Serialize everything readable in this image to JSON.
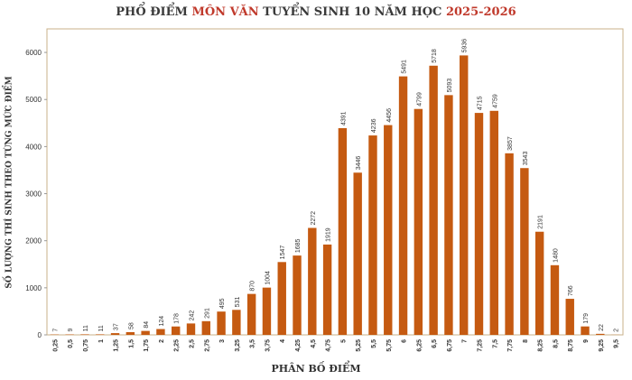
{
  "title": {
    "part1": "PHỔ ĐIỂM ",
    "part2": "MÔN VĂN",
    "part3": " TUYỂN SINH 10 NĂM HỌC ",
    "part4": "2025-2026"
  },
  "colors": {
    "bar": "#c55a11",
    "accent": "#c0392b",
    "frame": "#c9b18a"
  },
  "chart_data": {
    "type": "bar",
    "title": "PHỔ ĐIỂM MÔN VĂN TUYỂN SINH 10 NĂM HỌC 2025-2026",
    "xlabel": "PHÂN BỐ ĐIỂM",
    "ylabel": "SỐ LƯỢNG THÍ SINH THEO TỪNG MỨC ĐIỂM",
    "ylim": [
      0,
      6500
    ],
    "yticks": [
      0,
      1000,
      2000,
      3000,
      4000,
      5000,
      6000
    ],
    "grid": false,
    "categories": [
      "0,25",
      "0,5",
      "0,75",
      "1",
      "1,25",
      "1,5",
      "1,75",
      "2",
      "2,25",
      "2,5",
      "2,75",
      "3",
      "3,25",
      "3,5",
      "3,75",
      "4",
      "4,25",
      "4,5",
      "4,75",
      "5",
      "5,25",
      "5,5",
      "5,75",
      "6",
      "6,25",
      "6,5",
      "6,75",
      "7",
      "7,25",
      "7,5",
      "7,75",
      "8",
      "8,25",
      "8,5",
      "8,75",
      "9",
      "9,25",
      "9,5"
    ],
    "values": [
      7,
      9,
      11,
      11,
      37,
      58,
      84,
      124,
      178,
      242,
      291,
      495,
      531,
      870,
      1004,
      1547,
      1685,
      2272,
      1919,
      4391,
      3446,
      4236,
      4456,
      5491,
      4799,
      5718,
      5093,
      5936,
      4715,
      4759,
      3857,
      3543,
      2191,
      1480,
      766,
      179,
      22,
      2
    ]
  }
}
